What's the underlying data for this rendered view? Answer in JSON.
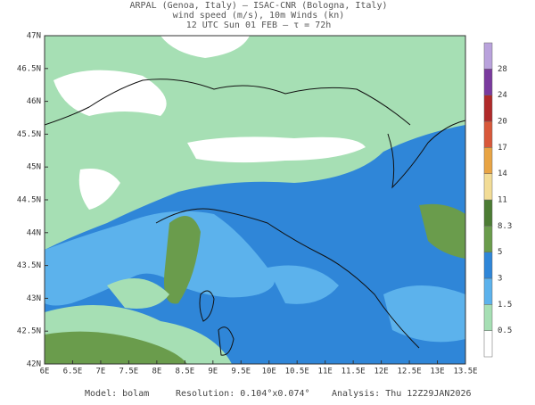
{
  "header": {
    "lines": [
      "ARPAL (Genoa, Italy)  –  ISAC-CNR (Bologna, Italy)",
      "wind speed (m/s), 10m Winds (kn)",
      "12 UTC Sun 01 FEB  –  τ = 72h"
    ]
  },
  "map": {
    "lat_labels": [
      "47N",
      "46.5N",
      "46N",
      "45.5N",
      "45N",
      "44.5N",
      "44N",
      "43.5N",
      "43N",
      "42.5N",
      "42N"
    ],
    "lon_labels": [
      "6E",
      "6.5E",
      "7E",
      "7.5E",
      "8E",
      "8.5E",
      "9E",
      "9.5E",
      "10E",
      "10.5E",
      "11E",
      "11.5E",
      "12E",
      "12.5E",
      "13E",
      "13.5E"
    ]
  },
  "colorbar": {
    "labels": [
      "0.5",
      "1.5",
      "3",
      "5",
      "8.3",
      "11",
      "14",
      "17",
      "20",
      "24",
      "28"
    ],
    "colors": [
      "#ffffff",
      "#a6dfb4",
      "#5cb2ec",
      "#2f86d8",
      "#6a9c4c",
      "#4c7c34",
      "#f2dc96",
      "#e8a444",
      "#d8583a",
      "#b02a2a",
      "#7a3a9e",
      "#b9a2dc"
    ]
  },
  "footer": {
    "model": "Model: bolam",
    "resolution": "Resolution: 0.104°x0.074°",
    "analysis": "Analysis: Thu 12Z29JAN2026"
  }
}
